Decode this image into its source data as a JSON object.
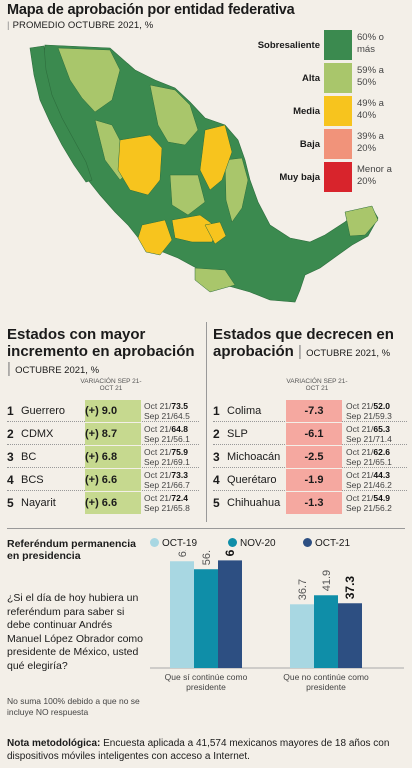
{
  "header": {
    "title": "Mapa de aprobación por entidad federativa",
    "subtitle": "PROMEDIO OCTUBRE 2021, %"
  },
  "legend": [
    {
      "label": "Sobresaliente",
      "range": "60% o más",
      "color": "#3b8a4f"
    },
    {
      "label": "Alta",
      "range": "59% a 50%",
      "color": "#a9c66b"
    },
    {
      "label": "Media",
      "range": "49% a 40%",
      "color": "#f7c41e"
    },
    {
      "label": "Baja",
      "range": "39% a 20%",
      "color": "#f1937a"
    },
    {
      "label": "Muy baja",
      "range": "Menor a 20%",
      "color": "#d8242c"
    }
  ],
  "increase": {
    "title": "Estados con mayor incremento en aprobación",
    "subtitle": "OCTUBRE 2021, %",
    "var_head": "VARIACIÓN SEP 21-OCT 21",
    "rows": [
      {
        "rank": "1",
        "state": "Guerrero",
        "variation": "(+) 9.0",
        "oct": "Oct 21/",
        "oct_val": "73.5",
        "sep": "Sep 21/64.5"
      },
      {
        "rank": "2",
        "state": "CDMX",
        "variation": "(+) 8.7",
        "oct": "Oct 21/",
        "oct_val": "64.8",
        "sep": "Sep 21/56.1"
      },
      {
        "rank": "3",
        "state": "BC",
        "variation": "(+) 6.8",
        "oct": "Oct 21/",
        "oct_val": "75.9",
        "sep": "Sep 21/69.1"
      },
      {
        "rank": "4",
        "state": "BCS",
        "variation": "(+) 6.6",
        "oct": "Oct 21/",
        "oct_val": "73.3",
        "sep": "Sep 21/66.7"
      },
      {
        "rank": "5",
        "state": "Nayarit",
        "variation": "(+) 6.6",
        "oct": "Oct 21/",
        "oct_val": "72.4",
        "sep": "Sep 21/65.8"
      }
    ]
  },
  "decrease": {
    "title": "Estados que decrecen en aprobación",
    "subtitle": "OCTUBRE 2021, %",
    "var_head": "VARIACIÓN SEP 21-OCT 21",
    "rows": [
      {
        "rank": "1",
        "state": "Colima",
        "variation": "-7.3",
        "oct": "Oct 21/",
        "oct_val": "52.0",
        "sep": "Sep 21/59.3"
      },
      {
        "rank": "2",
        "state": "SLP",
        "variation": "-6.1",
        "oct": "Oct 21/",
        "oct_val": "65.3",
        "sep": "Sep 21/71.4"
      },
      {
        "rank": "3",
        "state": "Michoacán",
        "variation": "-2.5",
        "oct": "Oct 21/",
        "oct_val": "62.6",
        "sep": "Sep 21/65.1"
      },
      {
        "rank": "4",
        "state": "Querétaro",
        "variation": "-1.9",
        "oct": "Oct 21/",
        "oct_val": "44.3",
        "sep": "Sep 21/46.2"
      },
      {
        "rank": "5",
        "state": "Chihuahua",
        "variation": "-1.3",
        "oct": "Oct 21/",
        "oct_val": "54.9",
        "sep": "Sep 21/56.2"
      }
    ]
  },
  "referendum": {
    "title": "Referéndum permanencia en presidencia",
    "question": "¿Si el día de hoy hubiera un referéndum para saber si debe continuar Andrés Manuel López Obrador como presidente de México, usted qué elegiría?",
    "note": "No suma 100% debido a que no se incluye NO respuesta"
  },
  "chart_data": {
    "type": "bar",
    "categories": [
      "Que sí continúe como presidente",
      "Que no continúe como presidente"
    ],
    "series": [
      {
        "name": "OCT-19",
        "values": [
          61.5,
          36.7
        ],
        "color": "#a8d7e2"
      },
      {
        "name": "NOV-20",
        "values": [
          56.9,
          41.9
        ],
        "color": "#0f8ea8"
      },
      {
        "name": "OCT-21",
        "values": [
          62.0,
          37.3
        ],
        "color": "#2d4f82"
      }
    ],
    "ylim": [
      0,
      70
    ],
    "grid": false,
    "legend_position": "top"
  },
  "footer": {
    "label": "Nota metodológica:",
    "text": "Encuesta aplicada a 41,574 mexicanos mayores de 18 años con dispositivos móviles inteligentes con acceso a Internet."
  }
}
